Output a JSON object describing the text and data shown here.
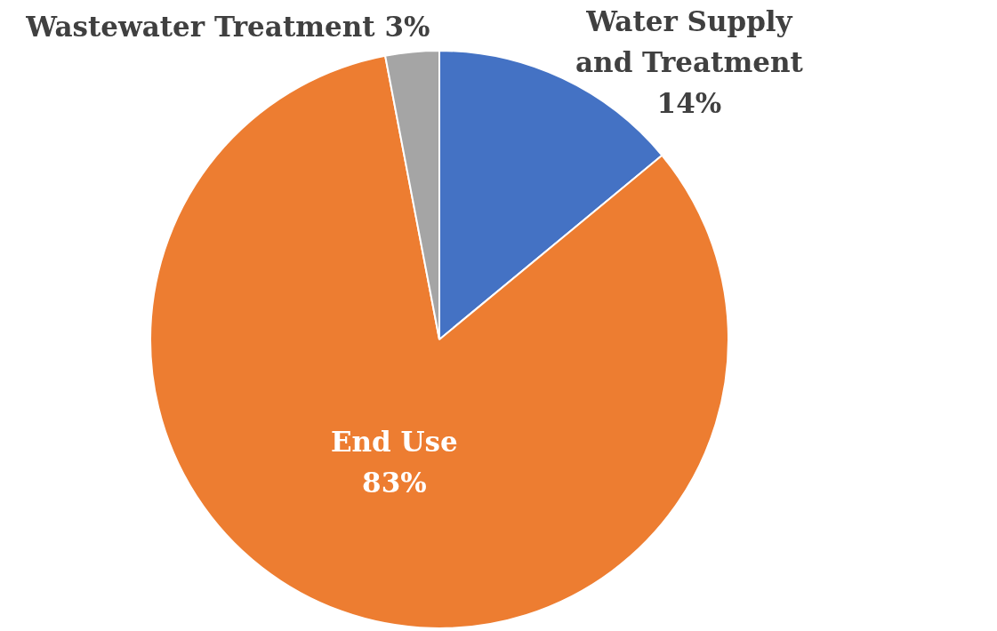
{
  "chart_data": {
    "type": "pie",
    "categories": [
      "Water Supply and Treatment",
      "End Use",
      "Wastewater Treatment"
    ],
    "values": [
      14,
      83,
      3
    ],
    "colors": [
      "#4472c4",
      "#ed7d31",
      "#a5a5a5"
    ],
    "value_labels": [
      "14%",
      "83%",
      "3%"
    ],
    "legend": false
  }
}
